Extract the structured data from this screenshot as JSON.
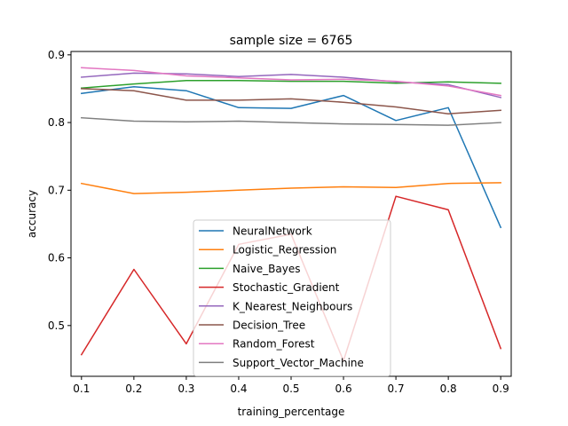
{
  "chart_data": {
    "type": "line",
    "title": "sample size = 6765",
    "xlabel": "training_percentage",
    "ylabel": "accuracy",
    "x": [
      0.1,
      0.2,
      0.3,
      0.4,
      0.5,
      0.6,
      0.7,
      0.8,
      0.9
    ],
    "xlim": [
      0.08,
      0.92
    ],
    "ylim": [
      0.425,
      0.905
    ],
    "xticks": [
      "0.1",
      "0.2",
      "0.3",
      "0.4",
      "0.5",
      "0.6",
      "0.7",
      "0.8",
      "0.9"
    ],
    "yticks": [
      "0.5",
      "0.6",
      "0.7",
      "0.8",
      "0.9"
    ],
    "ytick_values": [
      0.5,
      0.6,
      0.7,
      0.8,
      0.9
    ],
    "grid": false,
    "legend_position": "lower-center",
    "series": [
      {
        "name": "NeuralNetwork",
        "color": "#1f77b4",
        "values": [
          0.843,
          0.853,
          0.847,
          0.822,
          0.821,
          0.84,
          0.803,
          0.822,
          0.645
        ]
      },
      {
        "name": "Logistic_Regression",
        "color": "#ff7f0e",
        "values": [
          0.71,
          0.695,
          0.697,
          0.7,
          0.703,
          0.705,
          0.704,
          0.71,
          0.711
        ]
      },
      {
        "name": "Naive_Bayes",
        "color": "#2ca02c",
        "values": [
          0.851,
          0.857,
          0.862,
          0.862,
          0.861,
          0.861,
          0.858,
          0.86,
          0.858
        ]
      },
      {
        "name": "Stochastic_Gradient",
        "color": "#d62728",
        "values": [
          0.457,
          0.583,
          0.473,
          0.62,
          0.635,
          0.448,
          0.691,
          0.671,
          0.466
        ]
      },
      {
        "name": "K_Nearest_Neighbours",
        "color": "#9467bd",
        "values": [
          0.867,
          0.873,
          0.872,
          0.868,
          0.871,
          0.867,
          0.86,
          0.856,
          0.837
        ]
      },
      {
        "name": "Decision_Tree",
        "color": "#8c564b",
        "values": [
          0.85,
          0.847,
          0.833,
          0.833,
          0.835,
          0.83,
          0.823,
          0.813,
          0.818
        ]
      },
      {
        "name": "Random_Forest",
        "color": "#e377c2",
        "values": [
          0.881,
          0.877,
          0.869,
          0.866,
          0.863,
          0.864,
          0.861,
          0.854,
          0.84
        ]
      },
      {
        "name": "Support_Vector_Machine",
        "color": "#7f7f7f",
        "values": [
          0.807,
          0.802,
          0.801,
          0.802,
          0.8,
          0.798,
          0.797,
          0.796,
          0.8
        ]
      }
    ]
  }
}
